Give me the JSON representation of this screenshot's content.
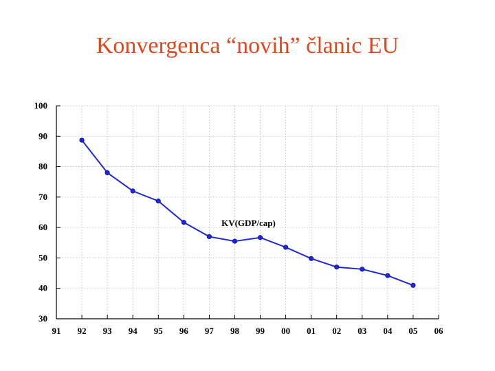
{
  "title": "Konvergenca “novih” članic EU",
  "chart_data": {
    "type": "line",
    "title": "Konvergenca “novih” članic EU",
    "xlabel": "",
    "ylabel": "",
    "x_tick_labels": [
      "91",
      "92",
      "93",
      "94",
      "95",
      "96",
      "97",
      "98",
      "99",
      "00",
      "01",
      "02",
      "03",
      "04",
      "05",
      "06"
    ],
    "y_ticks": [
      30,
      40,
      50,
      60,
      70,
      80,
      90,
      100
    ],
    "ylim": [
      30,
      100
    ],
    "grid": true,
    "legend": "none",
    "series": [
      {
        "name": "KV(GDP/cap)",
        "color": "#1f28d6",
        "x": [
          "92",
          "93",
          "94",
          "95",
          "96",
          "97",
          "98",
          "99",
          "00",
          "01",
          "02",
          "03",
          "04",
          "05"
        ],
        "values": [
          88.7,
          78.0,
          72.0,
          68.7,
          61.7,
          57.0,
          55.5,
          56.7,
          53.5,
          49.8,
          47.0,
          46.3,
          44.2,
          41.0
        ]
      }
    ]
  }
}
